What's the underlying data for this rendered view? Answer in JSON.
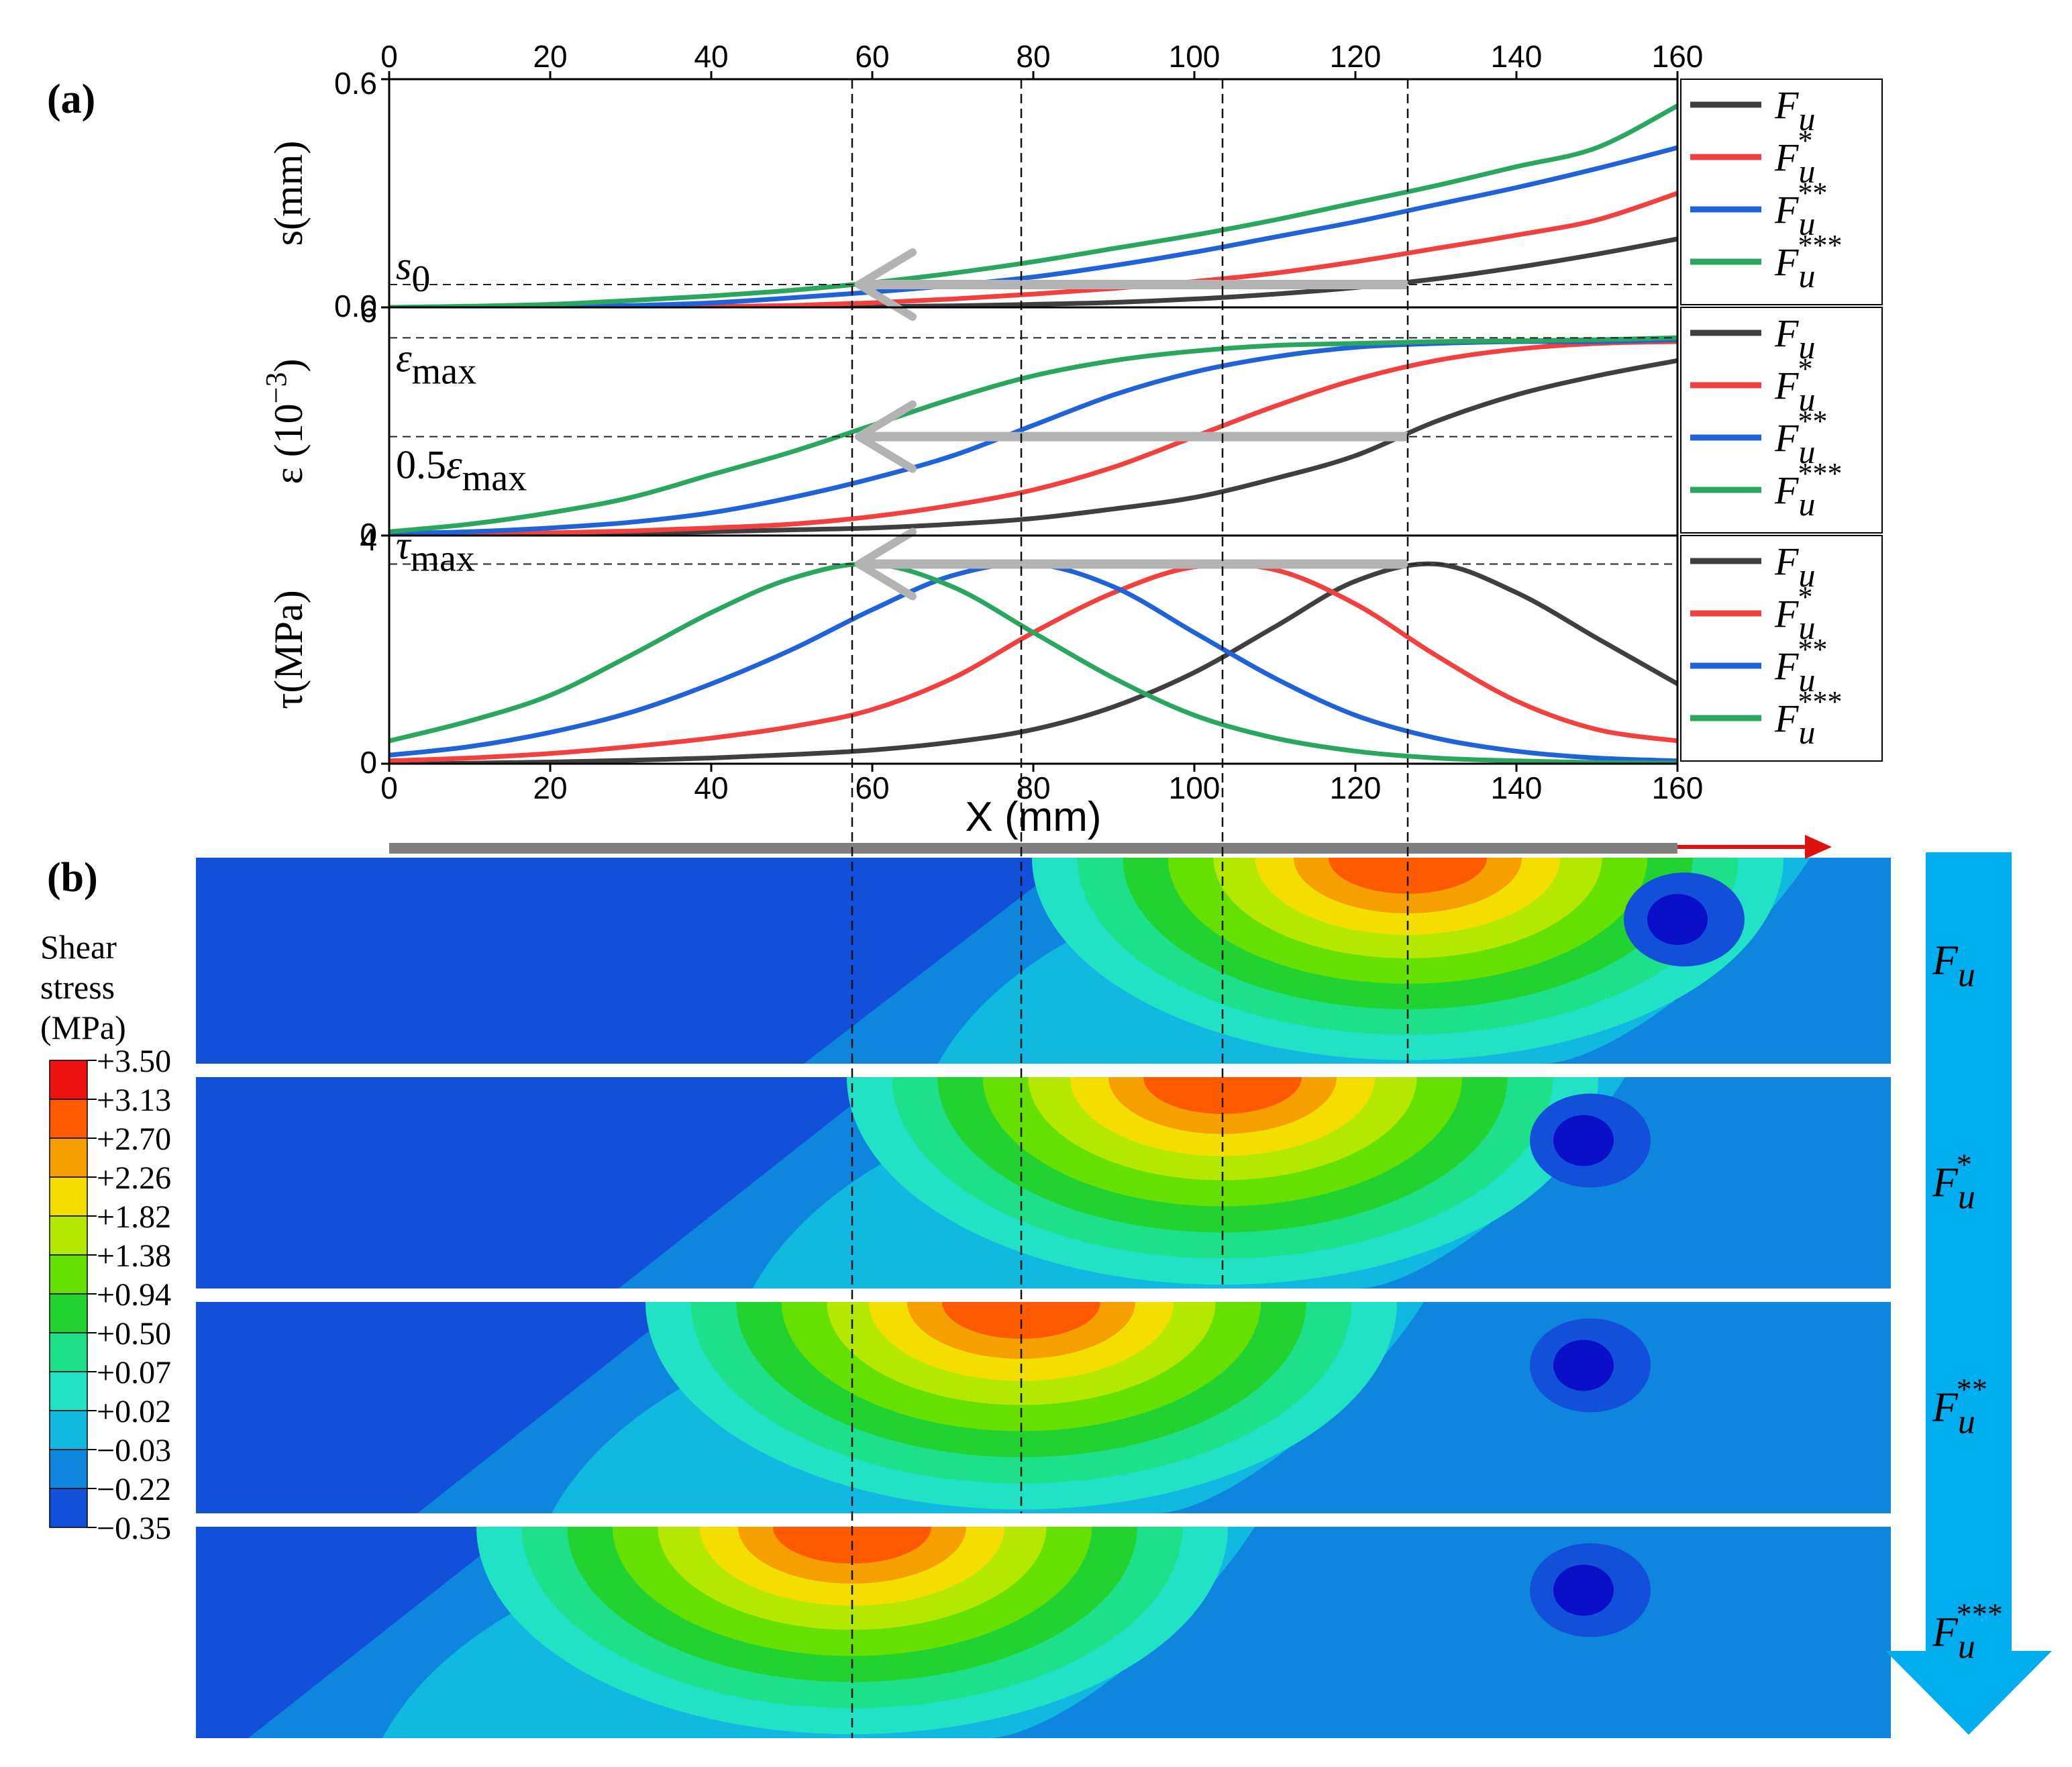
{
  "panel_labels": {
    "a": "(a)",
    "b": "(b)"
  },
  "colors": {
    "Fu": "#3f3f3f",
    "Fu_star": "#f04040",
    "Fu_2star": "#1f63d6",
    "Fu_3star": "#2aa65f",
    "guide_arrow": "#b3b3b3",
    "load_arrow": "#e01010",
    "bar": "#7f7f7f",
    "sequence_arrow": "#00aeef"
  },
  "legend": [
    {
      "base": "F",
      "sub": "u",
      "sup": ""
    },
    {
      "base": "F",
      "sub": "u",
      "sup": "*"
    },
    {
      "base": "F",
      "sub": "u",
      "sup": "**"
    },
    {
      "base": "F",
      "sub": "u",
      "sup": "***"
    }
  ],
  "chart_data": {
    "type": "line",
    "xlabel": "X (mm)",
    "xlim": [
      0,
      160
    ],
    "x_ticks": [
      "0",
      "20",
      "40",
      "60",
      "80",
      "100",
      "120",
      "140",
      "160"
    ],
    "x_tick_values": [
      0,
      20,
      40,
      60,
      80,
      100,
      120,
      140,
      160
    ],
    "x": [
      0,
      10,
      20,
      30,
      40,
      50,
      60,
      70,
      80,
      90,
      100,
      110,
      120,
      130,
      140,
      150,
      160
    ],
    "dashed_x": [
      57.5,
      78.5,
      103.5,
      126.5
    ],
    "panels": [
      {
        "id": "s",
        "ylabel_main": "s(mm)",
        "ylim": [
          0,
          0.6
        ],
        "y_ticks": [
          {
            "v": 0,
            "label": "0.0"
          },
          {
            "v": 0.6,
            "label": "0.6"
          }
        ],
        "ref_line": {
          "y": 0.06,
          "label_base": "s",
          "label_sub": "0"
        },
        "series": [
          {
            "name": "Fu",
            "values": [
              0,
              0,
              0,
              0,
              0,
              0.001,
              0.002,
              0.004,
              0.008,
              0.013,
              0.022,
              0.035,
              0.052,
              0.075,
              0.105,
              0.14,
              0.18
            ]
          },
          {
            "name": "Fu*",
            "values": [
              0,
              0,
              0,
              0,
              0.002,
              0.005,
              0.012,
              0.022,
              0.035,
              0.05,
              0.068,
              0.09,
              0.12,
              0.155,
              0.19,
              0.23,
              0.3
            ]
          },
          {
            "name": "Fu**",
            "values": [
              0,
              0,
              0.002,
              0.005,
              0.012,
              0.025,
              0.04,
              0.058,
              0.08,
              0.11,
              0.145,
              0.185,
              0.225,
              0.27,
              0.315,
              0.365,
              0.42
            ]
          },
          {
            "name": "Fu***",
            "values": [
              0,
              0.003,
              0.008,
              0.018,
              0.03,
              0.045,
              0.065,
              0.09,
              0.12,
              0.155,
              0.19,
              0.23,
              0.275,
              0.32,
              0.37,
              0.42,
              0.53
            ]
          }
        ]
      },
      {
        "id": "eps",
        "ylabel_main": "ε (10",
        "ylabel_sup": "−3",
        "ylabel_tail": ")",
        "ylim": [
          0,
          6
        ],
        "y_ticks": [
          {
            "v": 0,
            "label": "0"
          },
          {
            "v": 6,
            "label": "6"
          }
        ],
        "ref_lines": [
          {
            "y": 5.2,
            "label_prefix": "",
            "label_base": "ε",
            "label_sub": "max",
            "label_pos": "above"
          },
          {
            "y": 2.6,
            "label_prefix": "0.5",
            "label_base": "ε",
            "label_sub": "max",
            "label_pos": "below"
          }
        ],
        "series": [
          {
            "name": "Fu",
            "values": [
              0,
              0.01,
              0.03,
              0.06,
              0.1,
              0.15,
              0.2,
              0.3,
              0.45,
              0.7,
              1.0,
              1.5,
              2.1,
              3.0,
              3.7,
              4.2,
              4.6
            ]
          },
          {
            "name": "Fu*",
            "values": [
              0.02,
              0.04,
              0.07,
              0.12,
              0.2,
              0.3,
              0.5,
              0.8,
              1.2,
              1.8,
              2.6,
              3.4,
              4.1,
              4.6,
              4.9,
              5.05,
              5.1
            ]
          },
          {
            "name": "Fu**",
            "values": [
              0.05,
              0.1,
              0.2,
              0.35,
              0.6,
              1.0,
              1.5,
              2.1,
              2.9,
              3.7,
              4.3,
              4.7,
              4.95,
              5.05,
              5.1,
              5.1,
              5.15
            ]
          },
          {
            "name": "Fu***",
            "values": [
              0.1,
              0.3,
              0.6,
              1.0,
              1.6,
              2.2,
              2.9,
              3.6,
              4.2,
              4.6,
              4.85,
              5.0,
              5.05,
              5.1,
              5.12,
              5.15,
              5.2
            ]
          }
        ]
      },
      {
        "id": "tau",
        "ylabel_main": "τ(MPa)",
        "ylim": [
          0,
          4
        ],
        "y_ticks": [
          {
            "v": 0,
            "label": "0"
          },
          {
            "v": 4,
            "label": "4"
          }
        ],
        "ref_line": {
          "y": 3.5,
          "label_base": "τ",
          "label_sub": "max"
        },
        "series": [
          {
            "name": "Fu",
            "values": [
              0,
              0.01,
              0.03,
              0.06,
              0.1,
              0.16,
              0.24,
              0.38,
              0.6,
              1.0,
              1.6,
              2.4,
              3.2,
              3.5,
              3.0,
              2.2,
              1.4
            ]
          },
          {
            "name": "Fu*",
            "values": [
              0.05,
              0.1,
              0.18,
              0.3,
              0.45,
              0.65,
              0.95,
              1.5,
              2.3,
              3.0,
              3.45,
              3.4,
              2.8,
              1.9,
              1.1,
              0.6,
              0.4
            ]
          },
          {
            "name": "Fu**",
            "values": [
              0.15,
              0.3,
              0.55,
              0.9,
              1.4,
              2.0,
              2.7,
              3.3,
              3.5,
              3.1,
              2.3,
              1.5,
              0.85,
              0.45,
              0.22,
              0.1,
              0.05
            ]
          },
          {
            "name": "Fu***",
            "values": [
              0.4,
              0.75,
              1.2,
              1.9,
              2.65,
              3.25,
              3.5,
              3.1,
              2.3,
              1.5,
              0.85,
              0.45,
              0.22,
              0.1,
              0.05,
              0.02,
              0.01
            ]
          }
        ]
      }
    ]
  },
  "contour": {
    "title_lines": [
      "Shear",
      "stress",
      "(MPa)"
    ],
    "colorbar": {
      "labels": [
        "+3.50",
        "+3.13",
        "+2.70",
        "+2.26",
        "+1.82",
        "+1.38",
        "+0.94",
        "+0.50",
        "+0.07",
        "+0.02",
        "−0.03",
        "−0.22",
        "−0.35"
      ],
      "colors": [
        "#ee1111",
        "#ff5a00",
        "#f5a000",
        "#f4de00",
        "#b5e800",
        "#66e000",
        "#22d231",
        "#1fe08a",
        "#21e2c4",
        "#11b8e0",
        "#0f86de",
        "#1250da",
        "#0a10c8"
      ]
    },
    "strips": [
      {
        "label_base": "F",
        "label_sub": "u",
        "label_sup": "",
        "peak_x": 126.5
      },
      {
        "label_base": "F",
        "label_sub": "u",
        "label_sup": "*",
        "peak_x": 103.5
      },
      {
        "label_base": "F",
        "label_sub": "u",
        "label_sup": "**",
        "peak_x": 78.5
      },
      {
        "label_base": "F",
        "label_sub": "u",
        "label_sup": "***",
        "peak_x": 57.5
      }
    ]
  }
}
